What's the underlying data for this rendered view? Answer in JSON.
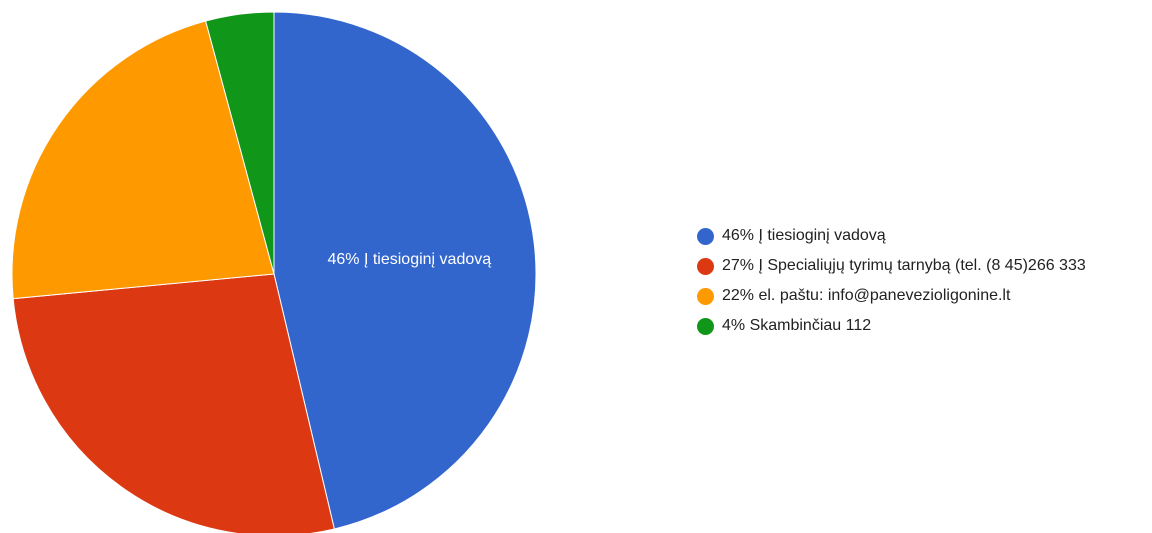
{
  "chart_data": {
    "type": "pie",
    "title": "",
    "categories": [
      "Į tiesioginį vadovą",
      "Į Specialiųjų tyrimų tarnybą (tel. (8 45)266 333",
      "el. paštu: info@panevezioligonine.lt",
      "Skambinčiau 112"
    ],
    "values": [
      46.3,
      27.2,
      22.3,
      4.2
    ],
    "percent_labels": [
      "46%",
      "27%",
      "22%",
      "4%"
    ],
    "colors": [
      "#3366cc",
      "#dc3912",
      "#ff9900",
      "#109618"
    ],
    "slice_labels": [
      "46% Į tiesioginį vadovą",
      "",
      "",
      ""
    ],
    "legend_labels": [
      "46% Į tiesioginį vadovą",
      "27% Į Specialiųjų tyrimų tarnybą (tel. (8 45)266 333",
      "22% el. paštu: info@panevezioligonine.lt",
      "4% Skambinčiau 112"
    ],
    "legend_position": "right"
  }
}
